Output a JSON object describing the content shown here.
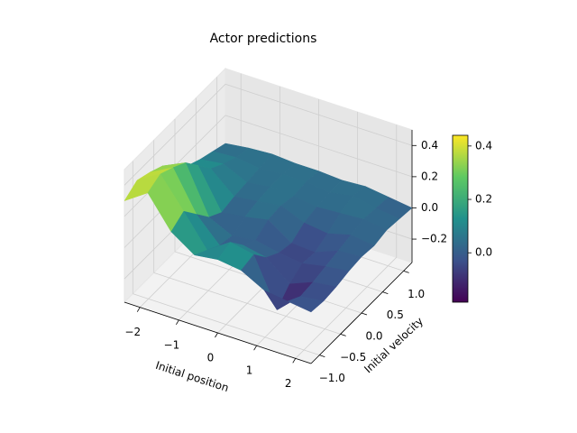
{
  "chart_data": {
    "type": "surface",
    "title": "Actor predictions",
    "xlabel": "Initial position",
    "ylabel": "Initial velocity",
    "colormap": "viridis",
    "grid": true,
    "x": [
      -2.4,
      -1.8,
      -1.2,
      -0.6,
      0,
      0.6,
      1.2,
      1.8,
      2.4
    ],
    "y": [
      -1.2,
      -0.9,
      -0.6,
      -0.3,
      0,
      0.3,
      0.6,
      0.9,
      1.2
    ],
    "z": [
      [
        0.3,
        0.4,
        0.2,
        0.1,
        0.12,
        0.1,
        0.02,
        0.0,
        -0.02
      ],
      [
        0.35,
        0.44,
        0.25,
        0.05,
        0.15,
        0.12,
        -0.185,
        -0.05,
        -0.03
      ],
      [
        0.32,
        0.4,
        0.15,
        0.0,
        0.05,
        0.02,
        -0.1,
        -0.04,
        -0.02
      ],
      [
        0.28,
        0.35,
        0.05,
        -0.02,
        0.0,
        -0.03,
        -0.05,
        -0.02,
        0.0
      ],
      [
        0.2,
        0.25,
        0.0,
        0.02,
        0.05,
        -0.05,
        -0.06,
        0.0,
        0.01
      ],
      [
        0.12,
        0.15,
        0.02,
        0.04,
        0.06,
        0.0,
        -0.02,
        0.02,
        0.0
      ],
      [
        0.08,
        0.1,
        0.03,
        0.05,
        0.04,
        0.02,
        0.03,
        0.04,
        0.02
      ],
      [
        0.05,
        0.06,
        0.04,
        0.05,
        0.05,
        0.03,
        0.06,
        0.03,
        0.01
      ],
      [
        0.02,
        0.04,
        0.05,
        0.04,
        0.04,
        0.03,
        0.04,
        0.02,
        0.0
      ]
    ],
    "xlim": [
      -2.4,
      2.4
    ],
    "ylim": [
      -1.2,
      1.2
    ],
    "zlim": [
      -0.35,
      0.5
    ],
    "xticks": [
      {
        "value": -2,
        "label": "−2"
      },
      {
        "value": -1,
        "label": "−1"
      },
      0,
      1,
      2
    ],
    "yticks": [
      {
        "value": -1,
        "label": "−1.0"
      },
      {
        "value": -0.5,
        "label": "−0.5"
      },
      {
        "value": 0,
        "label": "0.0"
      },
      0.5,
      {
        "value": 1,
        "label": "1.0"
      }
    ],
    "zticks": [
      {
        "value": -0.2,
        "label": "−0.2"
      },
      {
        "value": 0,
        "label": "0.0"
      },
      0.2,
      0.4
    ],
    "cticks": [
      {
        "value": 0,
        "label": "0.0"
      },
      0.2,
      0.4
    ]
  }
}
